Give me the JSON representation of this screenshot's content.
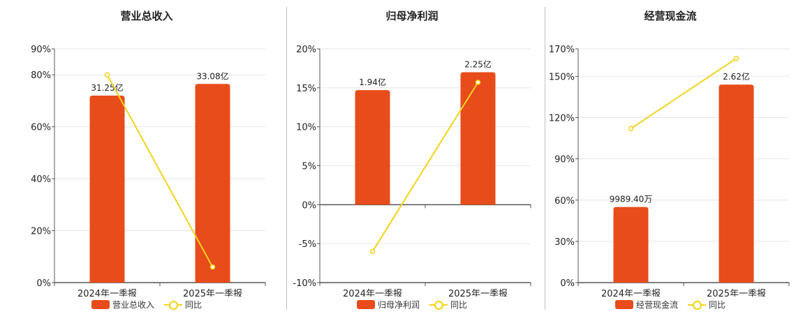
{
  "colors": {
    "bar": "#e84c1b",
    "line": "#f2d41c",
    "grid": "#e4e4ee",
    "axis": "#555555",
    "text": "#222222"
  },
  "legend": {
    "line_label": "同比"
  },
  "chart_data": [
    {
      "type": "bar",
      "title": "营业总收入",
      "categories": [
        "2024年一季报",
        "2025年一季报"
      ],
      "series": [
        {
          "name": "营业总收入",
          "type": "bar",
          "labels": [
            "31.25亿",
            "33.08亿"
          ],
          "values_pct_axis": [
            72,
            76.5
          ]
        },
        {
          "name": "同比",
          "type": "line",
          "values": [
            80,
            6
          ]
        }
      ],
      "ylim": [
        0,
        90
      ],
      "yticks": [
        0,
        20,
        40,
        60,
        80,
        90
      ],
      "ytick_labels": [
        "0%",
        "20%",
        "40%",
        "60%",
        "80%",
        "90%"
      ]
    },
    {
      "type": "bar",
      "title": "归母净利润",
      "categories": [
        "2024年一季报",
        "2025年一季报"
      ],
      "series": [
        {
          "name": "归母净利润",
          "type": "bar",
          "labels": [
            "1.94亿",
            "2.25亿"
          ],
          "values_pct_axis": [
            14.7,
            17
          ]
        },
        {
          "name": "同比",
          "type": "line",
          "values": [
            -6,
            15.7
          ]
        }
      ],
      "ylim": [
        -10,
        20
      ],
      "yticks": [
        -10,
        -5,
        0,
        5,
        10,
        15,
        20
      ],
      "ytick_labels": [
        "-10%",
        "-5%",
        "0%",
        "5%",
        "10%",
        "15%",
        "20%"
      ]
    },
    {
      "type": "bar",
      "title": "经营现金流",
      "categories": [
        "2024年一季报",
        "2025年一季报"
      ],
      "series": [
        {
          "name": "经营现金流",
          "type": "bar",
          "labels": [
            "9989.40万",
            "2.62亿"
          ],
          "values_pct_axis": [
            55,
            144
          ]
        },
        {
          "name": "同比",
          "type": "line",
          "values": [
            112,
            163
          ]
        }
      ],
      "ylim": [
        0,
        170
      ],
      "yticks": [
        0,
        30,
        60,
        90,
        120,
        150,
        170
      ],
      "ytick_labels": [
        "0%",
        "30%",
        "60%",
        "90%",
        "120%",
        "150%",
        "170%"
      ]
    }
  ]
}
